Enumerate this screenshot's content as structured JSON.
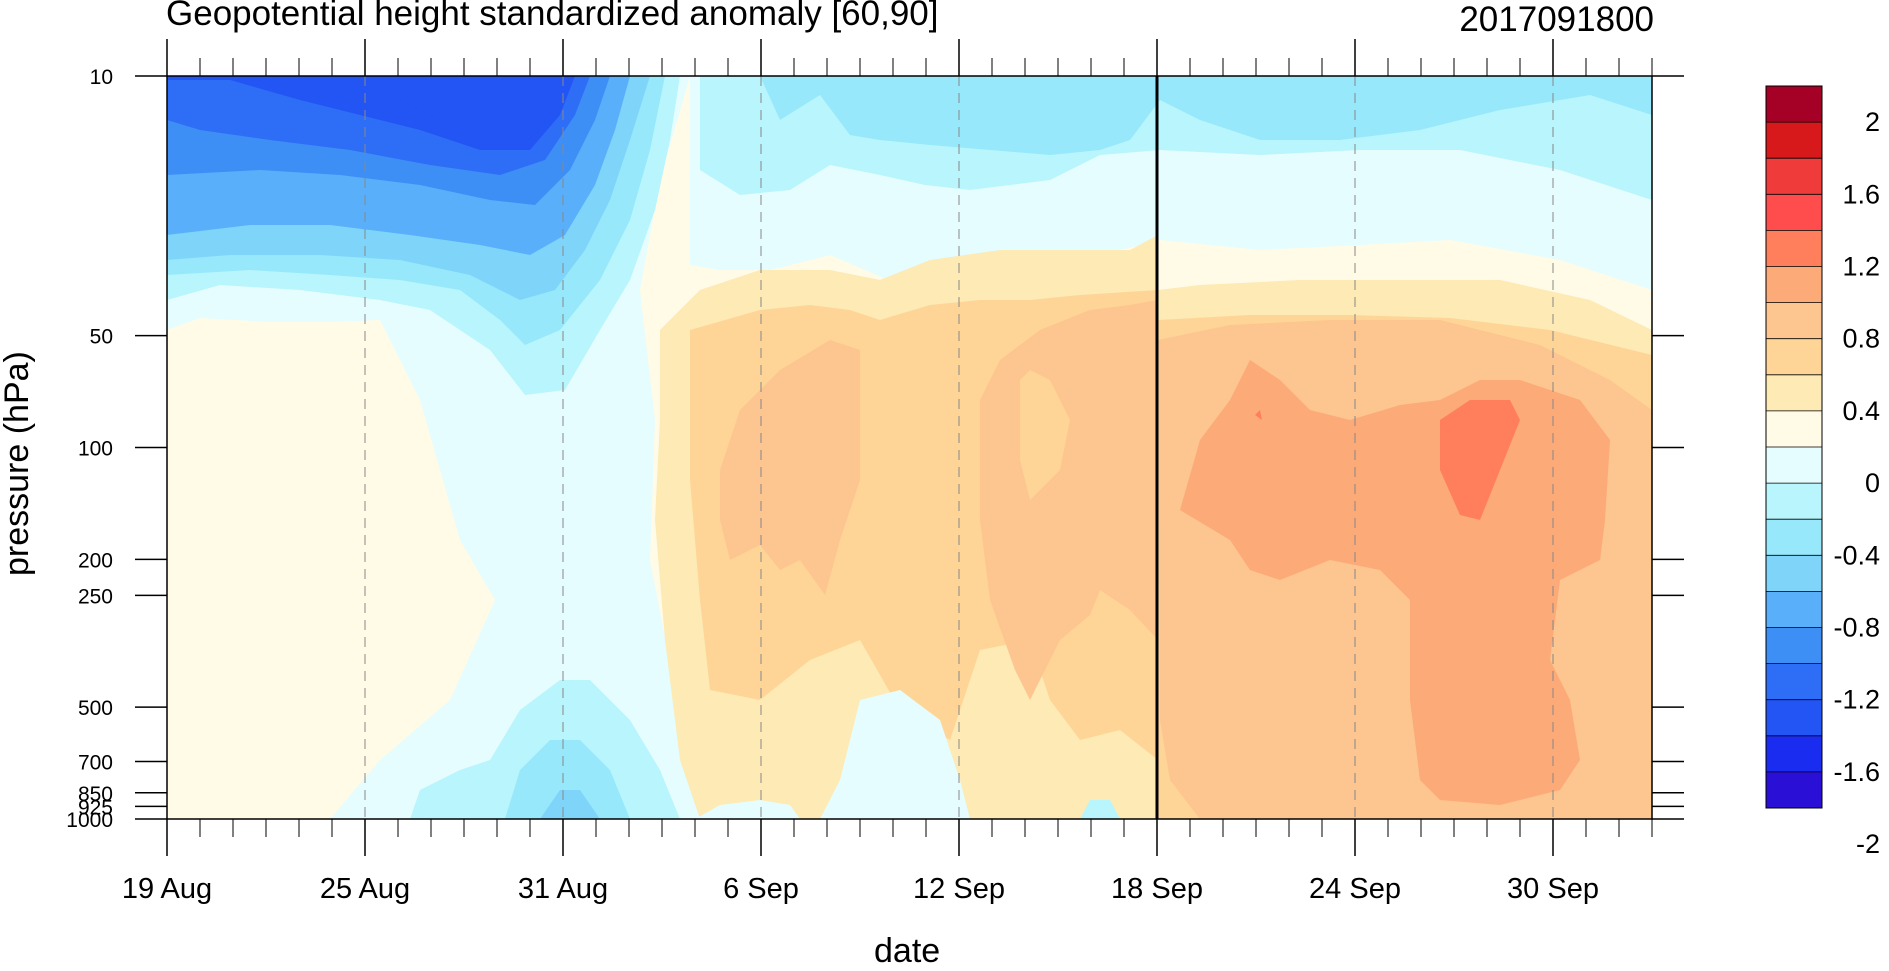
{
  "title": "Geopotential height standardized anomaly [60,90]",
  "init_time": "2017091800",
  "chart_data": {
    "type": "heatmap",
    "title": "Geopotential height standardized anomaly [60,90]",
    "annotation": "2017091800",
    "xlabel": "date",
    "ylabel": "pressure (hPa)",
    "x_ticks": [
      "19 Aug",
      "25 Aug",
      "31 Aug",
      "6 Sep",
      "12 Sep",
      "18 Sep",
      "24 Sep",
      "30 Sep"
    ],
    "x_start": "19 Aug",
    "x_end": "4 Oct",
    "y_ticks": [
      "10",
      "50",
      "100",
      "200",
      "250",
      "500",
      "700",
      "850",
      "925",
      "1000"
    ],
    "y_scale": "log",
    "ylim": [
      1000,
      10
    ],
    "marker_line_date": "18 Sep",
    "colorbar": {
      "labels": [
        "2",
        "1.6",
        "1.2",
        "0.8",
        "0.4",
        "0",
        "-0.4",
        "-0.8",
        "-1.2",
        "-1.6",
        "-2"
      ],
      "colors": [
        "#a50026",
        "#d7191c",
        "#f03b3b",
        "#ff4d4d",
        "#ff7f5c",
        "#fcaa78",
        "#fdc58f",
        "#fed597",
        "#fdeab5",
        "#fffbe6",
        "#e5fdfe",
        "#b9f5fc",
        "#97e8fb",
        "#7fd4fa",
        "#5aaffa",
        "#3d8ff6",
        "#2e6ef6",
        "#2355f4",
        "#1a2cf0",
        "#2a0fd6"
      ]
    },
    "fields": [
      {
        "level": "10 hPa",
        "summary": "strong negative anomaly (about -1.6 to -2) 19 Aug - 2 Sep, near 0 to -0.4 from 6 Sep onward"
      },
      {
        "level": "100 hPa",
        "summary": "positive 0 to 0.4 before 25 Aug, negative 28 Aug - 2 Sep, 0.4-0.8 6-18 Sep, 0.8-1.2 peaking above 1.2 around 26-28 Sep"
      },
      {
        "level": "1000 hPa",
        "summary": "near-zero anomalies, slight negative near 31 Aug and 16 Sep, 0.8+ after 18 Sep"
      }
    ]
  }
}
